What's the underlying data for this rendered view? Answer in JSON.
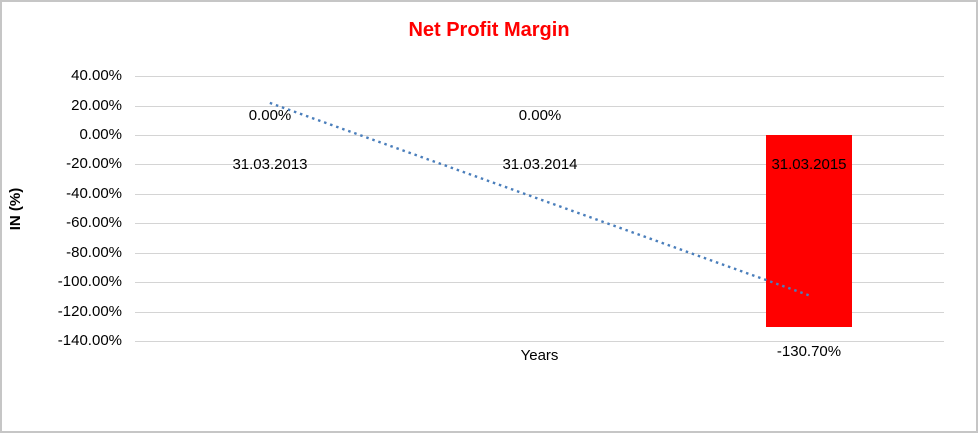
{
  "chart_data": {
    "type": "bar",
    "title": "Net Profit Margin",
    "title_color": "#ff0000",
    "categories": [
      "31.03.2013",
      "31.03.2014",
      "31.03.2015"
    ],
    "values": [
      0,
      0,
      -130.7
    ],
    "data_labels": [
      "0.00%",
      "0.00%",
      "-130.70%"
    ],
    "bar_color": "#ff0000",
    "xlabel": "Years",
    "ylabel": "IN (%)",
    "ylim": [
      -140,
      40
    ],
    "ytick_interval": 20,
    "ytick_labels": [
      "40.00%",
      "20.00%",
      "0.00%",
      "-20.00%",
      "-40.00%",
      "-60.00%",
      "-80.00%",
      "-100.00%",
      "-120.00%",
      "-140.00%"
    ],
    "grid": true,
    "legend": false,
    "trendline": {
      "style": "dotted",
      "color": "#4a7ebb",
      "start_value_pct": 21.78,
      "end_value_pct": -108.92
    }
  }
}
